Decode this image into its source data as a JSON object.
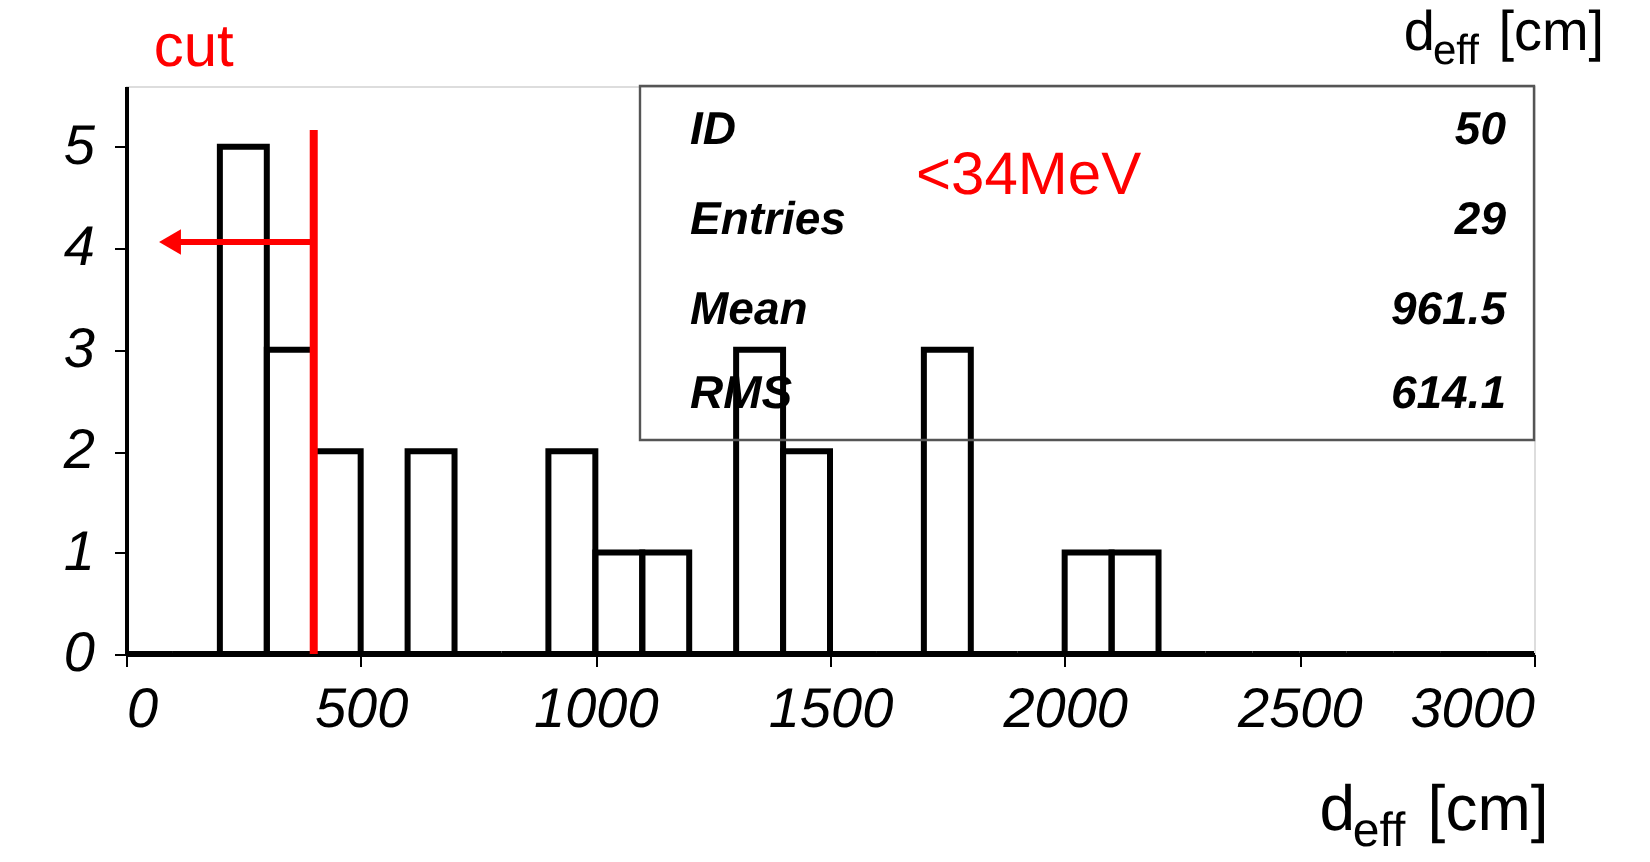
{
  "chart_data": {
    "type": "histogram",
    "xlabel": "d$_{eff}$ [cm]",
    "bins": [
      0,
      100,
      200,
      300,
      400,
      500,
      600,
      700,
      800,
      900,
      1000,
      1100,
      1200,
      1300,
      1400,
      1500,
      1600,
      1700,
      1800,
      1900,
      2000,
      2100,
      2200,
      2300,
      2400,
      2500,
      2600,
      2700,
      2800,
      2900,
      3000
    ],
    "values": [
      0,
      0,
      5,
      3,
      2,
      0,
      2,
      0,
      0,
      2,
      1,
      1,
      0,
      3,
      2,
      0,
      0,
      3,
      0,
      0,
      1,
      1,
      0,
      0,
      0,
      0,
      0,
      0,
      0,
      0
    ],
    "color": "#000000",
    "xlim": [
      0,
      3000
    ],
    "xticks": [
      0,
      500,
      1000,
      1500,
      2000,
      2500,
      3000
    ],
    "ylim": [
      0,
      5.6
    ],
    "yticks": [
      0,
      1,
      2,
      3,
      4,
      5
    ],
    "grid": false,
    "ref_lines": [
      {
        "axis": "x",
        "value": 400,
        "label": "cut",
        "color": "#ff0000"
      }
    ],
    "annotations": [
      "<34MeV",
      "ID",
      "50",
      "Entries",
      "29",
      "Mean",
      "961.5",
      "RMS",
      "614.1",
      "d$_{eff}$ [cm]"
    ]
  }
}
